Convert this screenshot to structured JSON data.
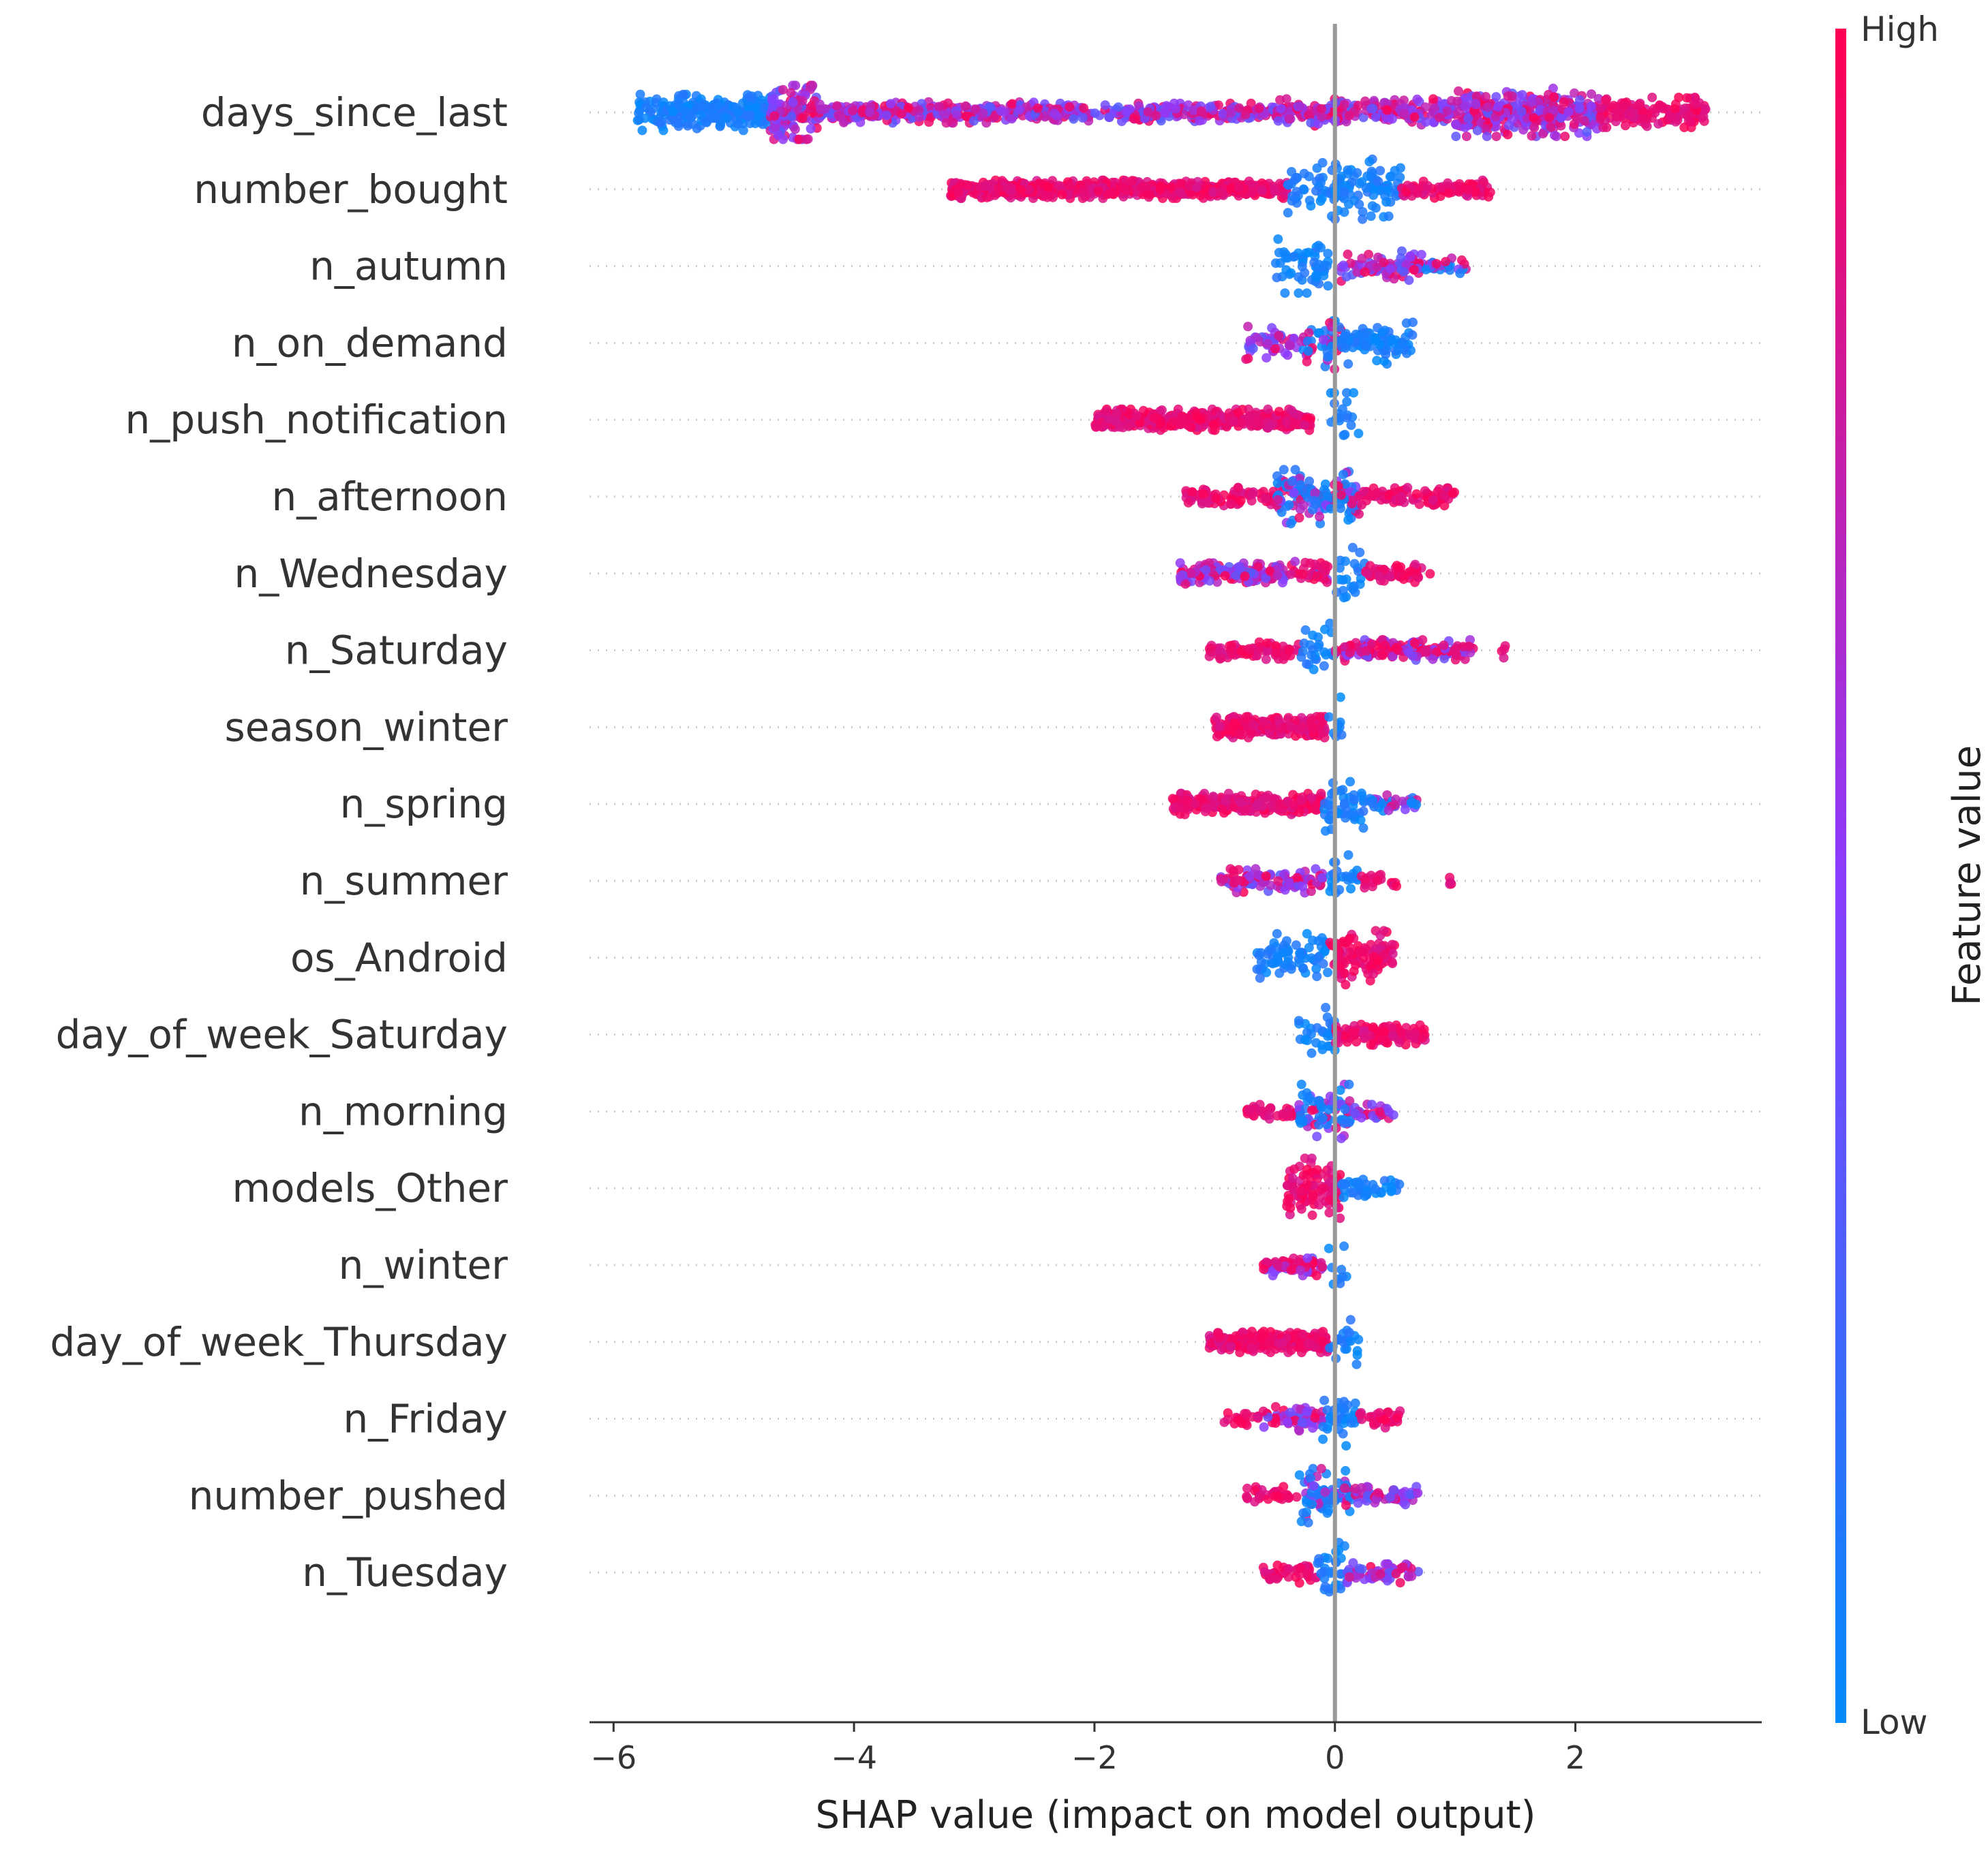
{
  "chart_data": {
    "type": "scatter",
    "subtype": "shap-beeswarm-summary",
    "title": "",
    "xlabel": "SHAP value (impact on model output)",
    "ylabel": "",
    "xlim": [
      -6.2,
      3.55
    ],
    "xticks": [
      -6,
      -4,
      -2,
      0,
      2
    ],
    "xtick_labels": [
      "−6",
      "−4",
      "−2",
      "0",
      "2"
    ],
    "zero_line": 0,
    "colorbar": {
      "label": "Feature value",
      "high_label": "High",
      "low_label": "Low",
      "high_color": "#ff0052",
      "mid_color": "#8b3cff",
      "low_color": "#008bfb"
    },
    "features": [
      {
        "name": "days_since_last",
        "min": -5.8,
        "max": 3.1,
        "segments": [
          [
            -5.8,
            -4.7,
            "low",
            2.0,
            0.6
          ],
          [
            -4.7,
            -4.3,
            "mix",
            3.0,
            0.9
          ],
          [
            -4.3,
            -2.5,
            "mix",
            1.5,
            0.35
          ],
          [
            -2.5,
            -0.5,
            "mix",
            1.3,
            0.3
          ],
          [
            -0.5,
            1.0,
            "mix",
            1.6,
            0.45
          ],
          [
            1.0,
            2.2,
            "mix",
            2.6,
            0.8
          ],
          [
            2.2,
            3.1,
            "high",
            1.6,
            0.5
          ]
        ]
      },
      {
        "name": "number_bought",
        "min": -3.2,
        "max": 1.5,
        "segments": [
          [
            -3.2,
            -0.4,
            "high",
            2.5,
            0.3
          ],
          [
            -0.4,
            0.0,
            "low",
            1.0,
            0.9
          ],
          [
            0.0,
            0.55,
            "low",
            1.6,
            1.0
          ],
          [
            0.55,
            1.3,
            "high",
            1.2,
            0.3
          ]
        ]
      },
      {
        "name": "n_autumn",
        "min": -0.5,
        "max": 1.1,
        "segments": [
          [
            -0.5,
            -0.05,
            "low",
            1.2,
            0.9
          ],
          [
            0.05,
            0.75,
            "mix",
            1.2,
            0.5
          ],
          [
            0.75,
            1.1,
            "mixlow",
            0.8,
            0.3
          ]
        ]
      },
      {
        "name": "n_on_demand",
        "min": -0.75,
        "max": 0.65,
        "segments": [
          [
            -0.75,
            -0.3,
            "mix",
            1.0,
            0.55
          ],
          [
            -0.3,
            0.05,
            "mixlow",
            1.4,
            0.9
          ],
          [
            0.05,
            0.65,
            "low",
            1.4,
            0.7
          ]
        ]
      },
      {
        "name": "n_push_notification",
        "min": -2.0,
        "max": 0.2,
        "segments": [
          [
            -2.0,
            -0.2,
            "high",
            2.6,
            0.35
          ],
          [
            -0.05,
            0.2,
            "low",
            0.8,
            0.9
          ]
        ]
      },
      {
        "name": "n_afternoon",
        "min": -1.25,
        "max": 1.0,
        "segments": [
          [
            -1.25,
            -0.5,
            "high",
            1.0,
            0.3
          ],
          [
            -0.5,
            0.2,
            "mixlow",
            2.0,
            0.9
          ],
          [
            0.2,
            1.0,
            "high",
            1.2,
            0.3
          ]
        ]
      },
      {
        "name": "n_Wednesday",
        "min": -1.3,
        "max": 0.8,
        "segments": [
          [
            -1.3,
            -0.4,
            "mix",
            1.5,
            0.35
          ],
          [
            -0.4,
            -0.05,
            "mixhigh",
            1.0,
            0.4
          ],
          [
            0.0,
            0.25,
            "low",
            0.9,
            1.0
          ],
          [
            0.25,
            0.8,
            "high",
            1.0,
            0.3
          ]
        ]
      },
      {
        "name": "n_Saturday",
        "min": -1.05,
        "max": 1.45,
        "segments": [
          [
            -1.05,
            -0.3,
            "high",
            1.0,
            0.3
          ],
          [
            -0.3,
            0.0,
            "low",
            0.9,
            0.9
          ],
          [
            0.0,
            1.15,
            "mixhigh",
            1.4,
            0.35
          ],
          [
            1.3,
            1.45,
            "high",
            0.3,
            0.3
          ]
        ]
      },
      {
        "name": "season_winter",
        "min": -1.0,
        "max": 0.1,
        "segments": [
          [
            -1.0,
            -0.05,
            "high",
            2.6,
            0.35
          ],
          [
            -0.05,
            0.1,
            "low",
            0.6,
            1.0
          ]
        ]
      },
      {
        "name": "n_spring",
        "min": -1.35,
        "max": 0.7,
        "segments": [
          [
            -1.35,
            -0.1,
            "high",
            1.8,
            0.35
          ],
          [
            -0.1,
            0.25,
            "low",
            1.3,
            0.9
          ],
          [
            0.25,
            0.7,
            "mixlow",
            0.8,
            0.3
          ]
        ]
      },
      {
        "name": "n_summer",
        "min": -0.95,
        "max": 1.0,
        "segments": [
          [
            -0.95,
            -0.1,
            "mix",
            1.2,
            0.4
          ],
          [
            -0.05,
            0.2,
            "low",
            1.0,
            0.9
          ],
          [
            0.2,
            0.55,
            "high",
            0.6,
            0.3
          ],
          [
            0.95,
            1.0,
            "high",
            0.2,
            0.2
          ]
        ]
      },
      {
        "name": "os_Android",
        "min": -0.65,
        "max": 0.5,
        "segments": [
          [
            -0.65,
            -0.05,
            "low",
            1.2,
            0.8
          ],
          [
            -0.05,
            0.5,
            "high",
            2.0,
            0.9
          ]
        ]
      },
      {
        "name": "day_of_week_Saturday",
        "min": -0.3,
        "max": 0.75,
        "segments": [
          [
            -0.3,
            0.0,
            "low",
            1.0,
            0.9
          ],
          [
            0.0,
            0.75,
            "high",
            1.6,
            0.35
          ]
        ]
      },
      {
        "name": "n_morning",
        "min": -0.75,
        "max": 0.5,
        "segments": [
          [
            -0.75,
            -0.3,
            "high",
            0.8,
            0.3
          ],
          [
            -0.3,
            0.15,
            "mixlow",
            1.6,
            0.9
          ],
          [
            0.15,
            0.5,
            "mix",
            0.8,
            0.3
          ]
        ]
      },
      {
        "name": "models_Other",
        "min": -0.4,
        "max": 0.55,
        "segments": [
          [
            -0.4,
            0.05,
            "high",
            2.2,
            1.0
          ],
          [
            0.05,
            0.55,
            "low",
            0.8,
            0.4
          ]
        ]
      },
      {
        "name": "n_winter",
        "min": -0.6,
        "max": 0.1,
        "segments": [
          [
            -0.6,
            -0.1,
            "mixhigh",
            1.4,
            0.35
          ],
          [
            -0.05,
            0.1,
            "low",
            0.6,
            1.0
          ]
        ]
      },
      {
        "name": "day_of_week_Thursday",
        "min": -1.05,
        "max": 0.2,
        "segments": [
          [
            -1.05,
            -0.05,
            "high",
            2.5,
            0.35
          ],
          [
            -0.05,
            0.2,
            "low",
            0.9,
            0.9
          ]
        ]
      },
      {
        "name": "n_Friday",
        "min": -0.95,
        "max": 0.6,
        "segments": [
          [
            -0.95,
            -0.6,
            "high",
            0.6,
            0.25
          ],
          [
            -0.6,
            -0.1,
            "mix",
            1.2,
            0.4
          ],
          [
            -0.1,
            0.2,
            "low",
            1.2,
            0.9
          ],
          [
            0.2,
            0.6,
            "high",
            0.8,
            0.3
          ]
        ]
      },
      {
        "name": "number_pushed",
        "min": -0.75,
        "max": 0.7,
        "segments": [
          [
            -0.75,
            -0.3,
            "high",
            0.8,
            0.3
          ],
          [
            -0.3,
            0.15,
            "mixlow",
            1.6,
            0.9
          ],
          [
            0.15,
            0.7,
            "mix",
            1.0,
            0.3
          ]
        ]
      },
      {
        "name": "n_Tuesday",
        "min": -0.6,
        "max": 0.7,
        "segments": [
          [
            -0.6,
            -0.15,
            "high",
            1.0,
            0.35
          ],
          [
            -0.15,
            0.1,
            "low",
            1.2,
            1.0
          ],
          [
            0.1,
            0.7,
            "mix",
            1.0,
            0.35
          ]
        ]
      }
    ]
  }
}
